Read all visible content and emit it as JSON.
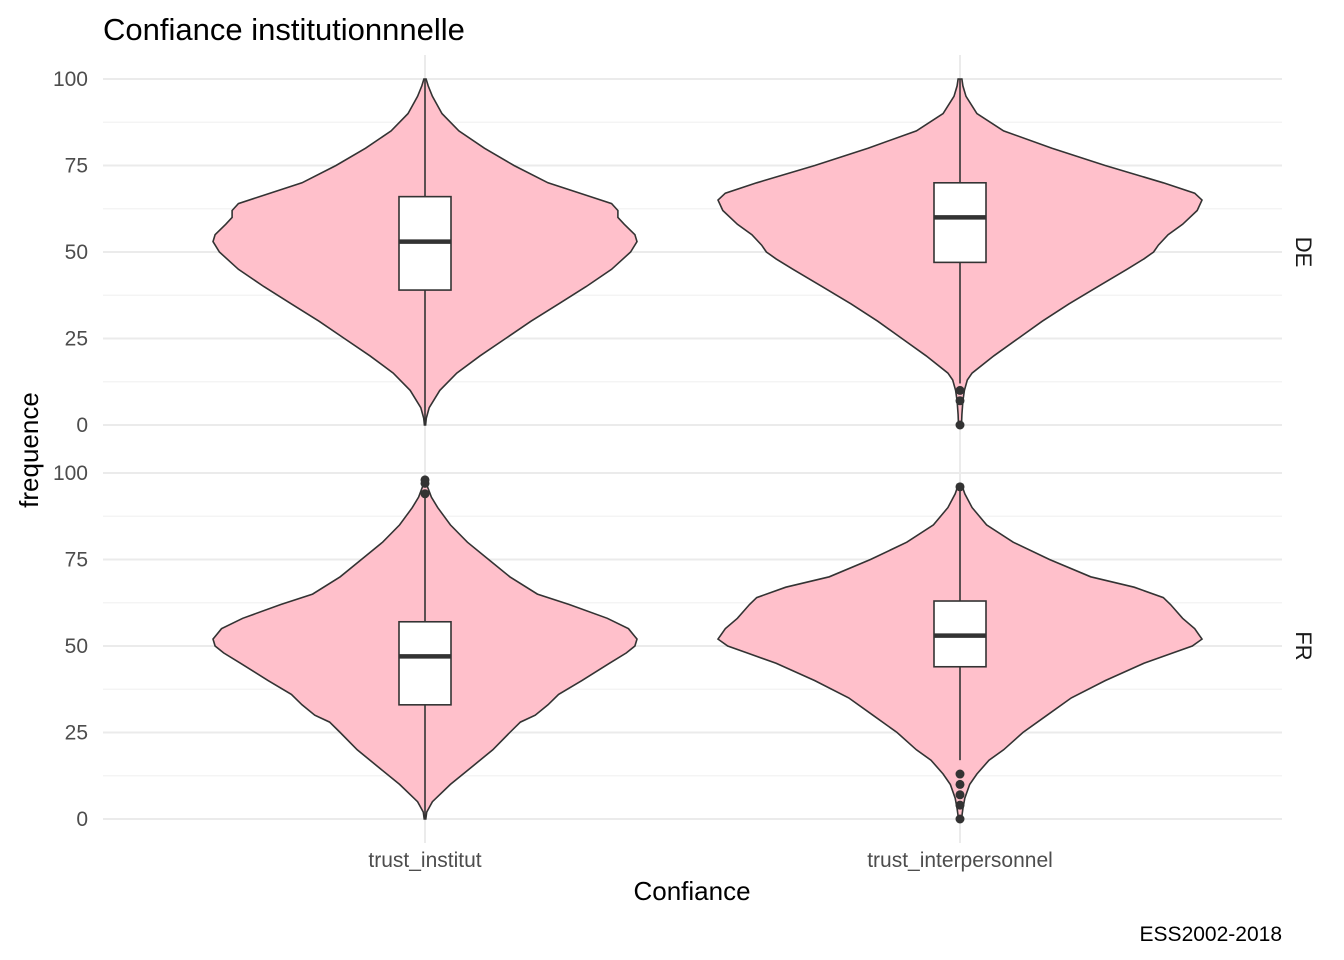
{
  "chart_data": {
    "type": "violin",
    "title": "Confiance institutionnnelle",
    "xlabel": "Confiance",
    "ylabel": "frequence",
    "caption": "ESS2002-2018",
    "categories": [
      "trust_institut",
      "trust_interpersonnel"
    ],
    "ylim": [
      0,
      100
    ],
    "y_ticks": [
      "0",
      "25",
      "50",
      "75",
      "100"
    ],
    "grid": true,
    "facets": [
      {
        "label": "DE",
        "groups": [
          {
            "category": "trust_institut",
            "min": 0,
            "q1": 39,
            "median": 53,
            "q3": 66,
            "max": 100,
            "outliers": [],
            "density": [
              [
                0,
                0.003
              ],
              [
                2,
                0.006
              ],
              [
                5,
                0.02
              ],
              [
                10,
                0.07
              ],
              [
                15,
                0.15
              ],
              [
                20,
                0.26
              ],
              [
                25,
                0.38
              ],
              [
                30,
                0.5
              ],
              [
                35,
                0.63
              ],
              [
                40,
                0.76
              ],
              [
                45,
                0.88
              ],
              [
                50,
                0.97
              ],
              [
                53,
                1.0
              ],
              [
                55,
                0.99
              ],
              [
                58,
                0.94
              ],
              [
                60,
                0.91
              ],
              [
                62,
                0.91
              ],
              [
                64,
                0.88
              ],
              [
                66,
                0.78
              ],
              [
                70,
                0.58
              ],
              [
                75,
                0.42
              ],
              [
                80,
                0.28
              ],
              [
                85,
                0.16
              ],
              [
                90,
                0.08
              ],
              [
                95,
                0.035
              ],
              [
                98,
                0.015
              ],
              [
                100,
                0.005
              ]
            ]
          },
          {
            "category": "trust_interpersonnel",
            "min": 12,
            "q1": 47,
            "median": 60,
            "q3": 70,
            "max": 100,
            "outliers": [
              0,
              7,
              10
            ],
            "density": [
              [
                0,
                0.006
              ],
              [
                3,
                0.008
              ],
              [
                7,
                0.012
              ],
              [
                10,
                0.018
              ],
              [
                13,
                0.03
              ],
              [
                15,
                0.05
              ],
              [
                20,
                0.14
              ],
              [
                25,
                0.24
              ],
              [
                30,
                0.34
              ],
              [
                35,
                0.45
              ],
              [
                40,
                0.57
              ],
              [
                45,
                0.69
              ],
              [
                48,
                0.76
              ],
              [
                50,
                0.8
              ],
              [
                52,
                0.82
              ],
              [
                55,
                0.86
              ],
              [
                58,
                0.92
              ],
              [
                62,
                0.98
              ],
              [
                65,
                1.0
              ],
              [
                67,
                0.97
              ],
              [
                70,
                0.84
              ],
              [
                75,
                0.6
              ],
              [
                80,
                0.38
              ],
              [
                85,
                0.18
              ],
              [
                90,
                0.07
              ],
              [
                95,
                0.025
              ],
              [
                98,
                0.012
              ],
              [
                100,
                0.008
              ]
            ]
          }
        ]
      },
      {
        "label": "FR",
        "groups": [
          {
            "category": "trust_institut",
            "min": 0,
            "q1": 33,
            "median": 47,
            "q3": 57,
            "max": 93,
            "outliers": [
              94,
              97,
              98
            ],
            "density": [
              [
                0,
                0.004
              ],
              [
                2,
                0.008
              ],
              [
                5,
                0.035
              ],
              [
                10,
                0.12
              ],
              [
                15,
                0.22
              ],
              [
                20,
                0.32
              ],
              [
                25,
                0.4
              ],
              [
                28,
                0.45
              ],
              [
                30,
                0.52
              ],
              [
                33,
                0.58
              ],
              [
                36,
                0.63
              ],
              [
                40,
                0.74
              ],
              [
                45,
                0.87
              ],
              [
                48,
                0.95
              ],
              [
                50,
                0.99
              ],
              [
                52,
                1.0
              ],
              [
                55,
                0.96
              ],
              [
                58,
                0.86
              ],
              [
                62,
                0.68
              ],
              [
                65,
                0.53
              ],
              [
                70,
                0.4
              ],
              [
                75,
                0.3
              ],
              [
                80,
                0.2
              ],
              [
                85,
                0.12
              ],
              [
                90,
                0.06
              ],
              [
                93,
                0.03
              ],
              [
                96,
                0.012
              ],
              [
                98,
                0.006
              ]
            ]
          },
          {
            "category": "trust_interpersonnel",
            "min": 17,
            "q1": 44,
            "median": 53,
            "q3": 63,
            "max": 96,
            "outliers": [
              0,
              4,
              7,
              10,
              13,
              96
            ],
            "density": [
              [
                0,
                0.006
              ],
              [
                3,
                0.012
              ],
              [
                6,
                0.02
              ],
              [
                10,
                0.04
              ],
              [
                13,
                0.07
              ],
              [
                17,
                0.12
              ],
              [
                20,
                0.18
              ],
              [
                25,
                0.26
              ],
              [
                30,
                0.36
              ],
              [
                35,
                0.46
              ],
              [
                40,
                0.6
              ],
              [
                45,
                0.76
              ],
              [
                48,
                0.88
              ],
              [
                50,
                0.96
              ],
              [
                52,
                1.0
              ],
              [
                55,
                0.97
              ],
              [
                58,
                0.92
              ],
              [
                62,
                0.87
              ],
              [
                64,
                0.84
              ],
              [
                67,
                0.72
              ],
              [
                70,
                0.54
              ],
              [
                75,
                0.37
              ],
              [
                80,
                0.22
              ],
              [
                85,
                0.11
              ],
              [
                90,
                0.05
              ],
              [
                94,
                0.02
              ],
              [
                96,
                0.01
              ]
            ]
          }
        ]
      }
    ]
  }
}
